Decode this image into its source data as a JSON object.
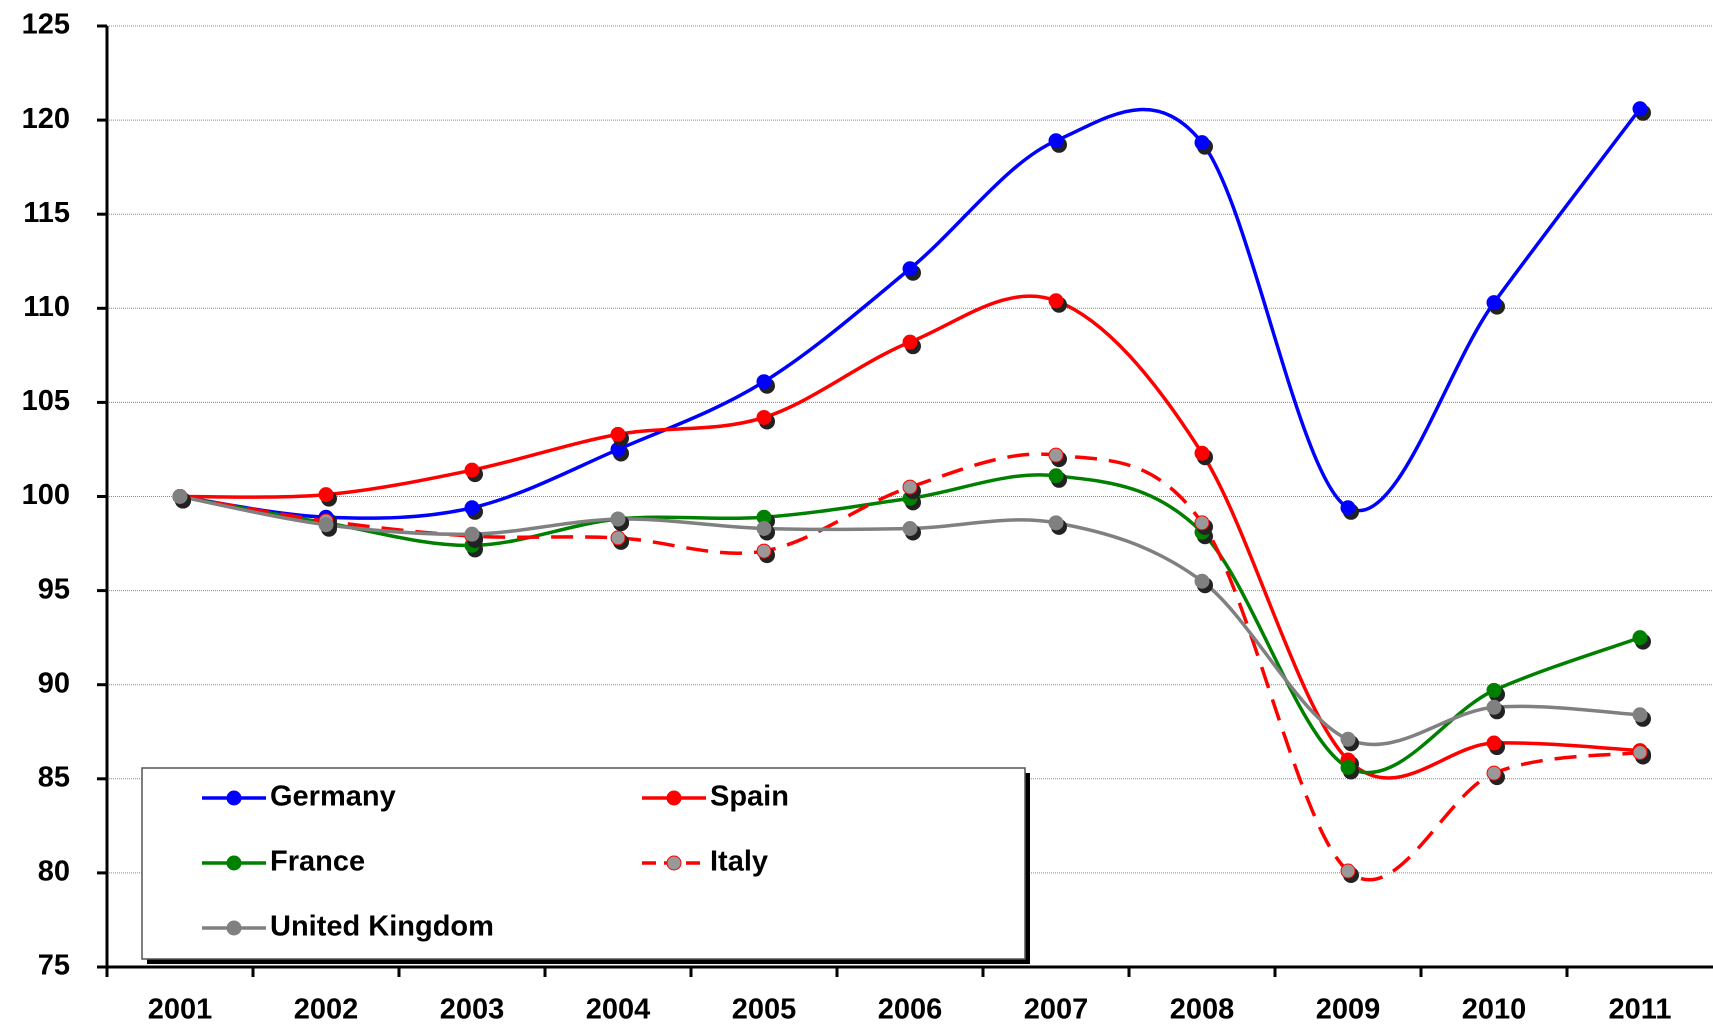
{
  "chart_data": {
    "type": "line",
    "smooth": true,
    "grid": true,
    "legend": "bottom-left",
    "categories": [
      "2001",
      "2002",
      "2003",
      "2004",
      "2005",
      "2006",
      "2007",
      "2008",
      "2009",
      "2010",
      "2011"
    ],
    "ylim": [
      75,
      125
    ],
    "yticks": [
      75,
      80,
      85,
      90,
      95,
      100,
      105,
      110,
      115,
      120,
      125
    ],
    "series": [
      {
        "name": "Germany",
        "color": "#0000ff",
        "values": [
          100,
          98.9,
          99.4,
          102.5,
          106.1,
          112.1,
          118.9,
          118.8,
          99.4,
          110.3,
          120.6
        ]
      },
      {
        "name": "Spain",
        "color": "#ff0000",
        "values": [
          100,
          100.1,
          101.4,
          103.3,
          104.2,
          108.2,
          110.4,
          102.3,
          86.0,
          86.9,
          86.5
        ]
      },
      {
        "name": "France",
        "color": "#008000",
        "values": [
          100,
          98.6,
          97.4,
          98.8,
          98.9,
          99.9,
          101.1,
          98.1,
          85.6,
          89.7,
          92.5
        ]
      },
      {
        "name": "Italy",
        "color": "#ff0000",
        "marker_color": "#999999",
        "dashed": true,
        "values": [
          100,
          98.7,
          97.9,
          97.8,
          97.1,
          100.5,
          102.2,
          98.6,
          80.1,
          85.3,
          86.4
        ]
      },
      {
        "name": "United Kingdom",
        "color": "#808080",
        "values": [
          100,
          98.5,
          98.0,
          98.8,
          98.3,
          98.3,
          98.6,
          95.5,
          87.1,
          88.8,
          88.4
        ]
      }
    ]
  }
}
